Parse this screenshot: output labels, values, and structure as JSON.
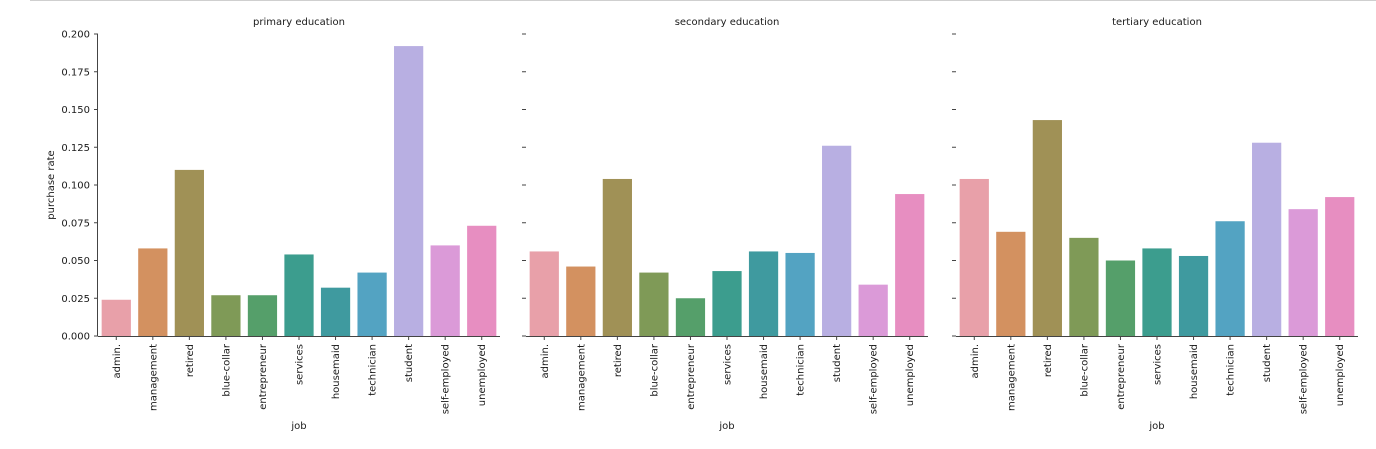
{
  "chart_data": {
    "type": "bar",
    "ylabel": "purchase rate",
    "xlabel": "job",
    "ylim": [
      0,
      0.2
    ],
    "yticks": [
      "0.000",
      "0.025",
      "0.050",
      "0.075",
      "0.100",
      "0.125",
      "0.150",
      "0.175",
      "0.200"
    ],
    "categories": [
      "admin.",
      "management",
      "retired",
      "blue-collar",
      "entrepreneur",
      "services",
      "housemaid",
      "technician",
      "student",
      "self-employed",
      "unemployed"
    ],
    "colors": [
      "#e8a0a9",
      "#d39160",
      "#a09156",
      "#7f9a57",
      "#559f6a",
      "#3c9d8e",
      "#3f9a9f",
      "#53a3c2",
      "#b8afe2",
      "#db9ad8",
      "#e78ec1"
    ],
    "panels": [
      {
        "title": "primary education",
        "values": [
          0.024,
          0.058,
          0.11,
          0.027,
          0.027,
          0.054,
          0.032,
          0.042,
          0.192,
          0.06,
          0.073
        ]
      },
      {
        "title": "secondary education",
        "values": [
          0.056,
          0.046,
          0.104,
          0.042,
          0.025,
          0.043,
          0.056,
          0.055,
          0.126,
          0.034,
          0.094
        ]
      },
      {
        "title": "tertiary education",
        "values": [
          0.104,
          0.069,
          0.143,
          0.065,
          0.05,
          0.058,
          0.053,
          0.076,
          0.128,
          0.084,
          0.092
        ]
      }
    ]
  }
}
